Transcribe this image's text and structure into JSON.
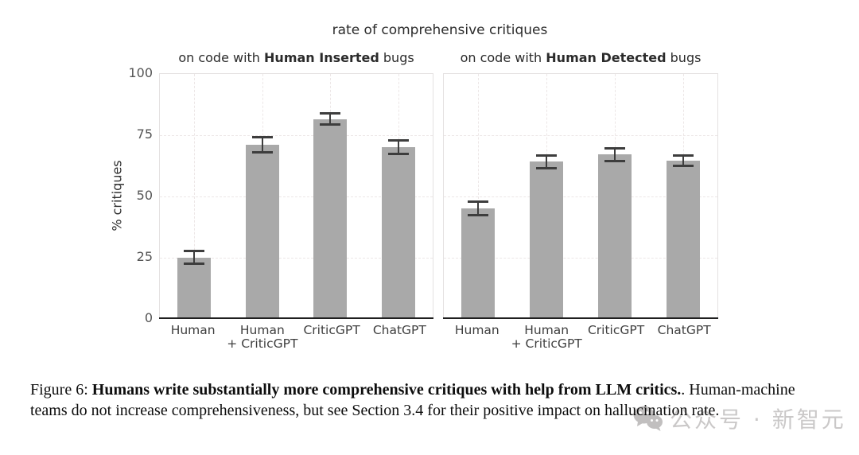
{
  "figure": {
    "title": "rate of comprehensive critiques",
    "caption": {
      "prefix": "Figure 6: ",
      "bold": "Humans write substantially more comprehensive critiques with help from LLM critics.",
      "rest": ". Human-machine teams do not increase comprehensiveness, but see Section 3.4 for their positive impact on hallucination rate."
    },
    "watermark": {
      "icon": "wechat-icon",
      "text": "公众号 · 新智元",
      "color": "#c1bfbf"
    }
  },
  "chart_data": [
    {
      "type": "bar",
      "panel": "left",
      "title_prefix": "on code with ",
      "title_bold": "Human Inserted",
      "title_suffix": " bugs",
      "categories": [
        "Human",
        "Human\n+ CriticGPT",
        "CriticGPT",
        "ChatGPT"
      ],
      "values": [
        24.5,
        70.5,
        81,
        69.5
      ],
      "errors": [
        2.6,
        3.0,
        2.3,
        2.8
      ],
      "ylabel": "% critiques",
      "yticks": [
        0,
        25,
        50,
        75,
        100
      ],
      "ylim": [
        0,
        100
      ],
      "show_ytick_labels": true,
      "grid": true,
      "bar_color": "#a9a9a9",
      "error_color": "#3d3d3d"
    },
    {
      "type": "bar",
      "panel": "right",
      "title_prefix": "on code with ",
      "title_bold": "Human Detected",
      "title_suffix": " bugs",
      "categories": [
        "Human",
        "Human\n+ CriticGPT",
        "CriticGPT",
        "ChatGPT"
      ],
      "values": [
        44.5,
        63.5,
        66.5,
        64
      ],
      "errors": [
        2.7,
        2.6,
        2.6,
        2.2
      ],
      "ylabel": "",
      "yticks": [
        0,
        25,
        50,
        75,
        100
      ],
      "ylim": [
        0,
        100
      ],
      "show_ytick_labels": false,
      "grid": true,
      "bar_color": "#a9a9a9",
      "error_color": "#3d3d3d"
    }
  ]
}
